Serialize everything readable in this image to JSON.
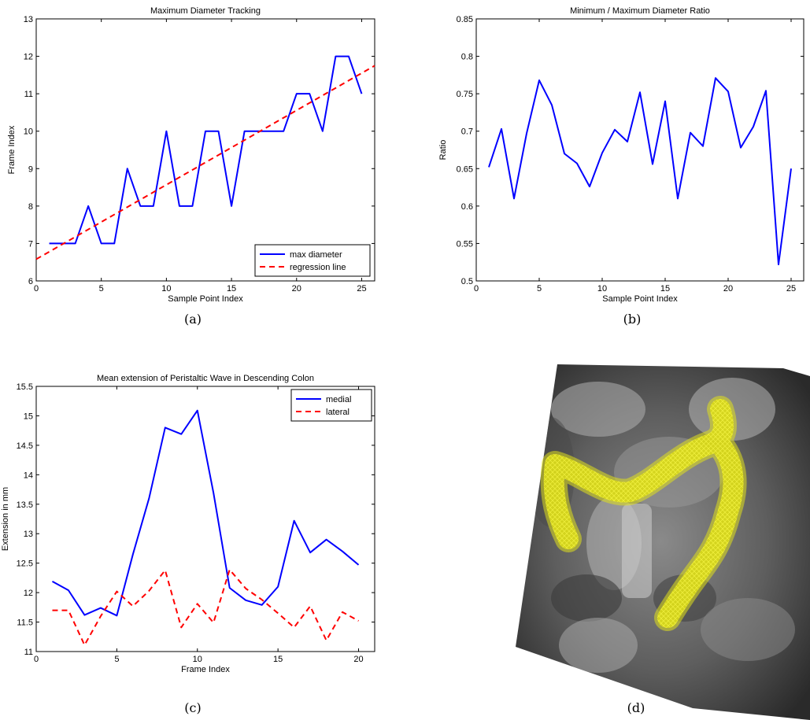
{
  "chart_data": [
    {
      "id": "a",
      "type": "line",
      "caption": "(a)",
      "title": "Maximum Diameter Tracking",
      "xlabel": "Sample Point Index",
      "ylabel": "Frame Index",
      "xlim": [
        0,
        26
      ],
      "ylim": [
        6,
        13
      ],
      "xticks": [
        0,
        5,
        10,
        15,
        20,
        25
      ],
      "yticks": [
        6,
        7,
        8,
        9,
        10,
        11,
        12,
        13
      ],
      "legend_position": "bottom-right",
      "series": [
        {
          "name": "max diameter",
          "color": "#0000ff",
          "dash": "solid",
          "x": [
            1,
            2,
            3,
            4,
            5,
            6,
            7,
            8,
            9,
            10,
            11,
            12,
            13,
            14,
            15,
            16,
            17,
            18,
            19,
            20,
            21,
            22,
            23,
            24,
            25
          ],
          "y": [
            7,
            7,
            7,
            8,
            7,
            7,
            9,
            8,
            8,
            10,
            8,
            8,
            10,
            10,
            8,
            10,
            10,
            10,
            10,
            11,
            11,
            10,
            12,
            12,
            11
          ]
        },
        {
          "name": "regression line",
          "color": "#ff0000",
          "dash": "dashed",
          "x": [
            0,
            26
          ],
          "y": [
            6.58,
            11.75
          ]
        }
      ]
    },
    {
      "id": "b",
      "type": "line",
      "caption": "(b)",
      "title": "Minimum / Maximum Diameter Ratio",
      "xlabel": "Sample Point Index",
      "ylabel": "Ratio",
      "xlim": [
        0,
        26
      ],
      "ylim": [
        0.5,
        0.85
      ],
      "xticks": [
        0,
        5,
        10,
        15,
        20,
        25
      ],
      "yticks": [
        0.5,
        0.55,
        0.6,
        0.65,
        0.7,
        0.75,
        0.8,
        0.85
      ],
      "series": [
        {
          "color": "#0000ff",
          "dash": "solid",
          "x": [
            1,
            2,
            3,
            4,
            5,
            6,
            7,
            8,
            9,
            10,
            11,
            12,
            13,
            14,
            15,
            16,
            17,
            18,
            19,
            20,
            21,
            22,
            23,
            24,
            25
          ],
          "y": [
            0.652,
            0.703,
            0.61,
            0.697,
            0.768,
            0.735,
            0.67,
            0.657,
            0.626,
            0.671,
            0.702,
            0.686,
            0.752,
            0.656,
            0.74,
            0.61,
            0.698,
            0.68,
            0.771,
            0.753,
            0.678,
            0.706,
            0.754,
            0.522,
            0.65
          ]
        }
      ]
    },
    {
      "id": "c",
      "type": "line",
      "caption": "(c)",
      "title": "Mean extension of Peristaltic Wave in Descending Colon",
      "xlabel": "Frame Index",
      "ylabel": "Extension in mm",
      "xlim": [
        0,
        21
      ],
      "ylim": [
        11,
        15.5
      ],
      "xticks": [
        0,
        5,
        10,
        15,
        20
      ],
      "yticks": [
        11,
        11.5,
        12,
        12.5,
        13,
        13.5,
        14,
        14.5,
        15,
        15.5
      ],
      "legend_position": "top-right",
      "series": [
        {
          "name": "medial",
          "color": "#0000ff",
          "dash": "solid",
          "x": [
            1,
            2,
            3,
            4,
            5,
            6,
            7,
            8,
            9,
            10,
            11,
            12,
            13,
            14,
            15,
            16,
            17,
            18,
            19,
            20
          ],
          "y": [
            12.19,
            12.04,
            11.62,
            11.74,
            11.61,
            12.65,
            13.6,
            14.8,
            14.69,
            15.09,
            13.69,
            12.08,
            11.87,
            11.79,
            12.1,
            13.22,
            12.68,
            12.9,
            12.7,
            12.47
          ]
        },
        {
          "name": "lateral",
          "color": "#ff0000",
          "dash": "dashed",
          "x": [
            1,
            2,
            3,
            4,
            5,
            6,
            7,
            8,
            9,
            10,
            11,
            12,
            13,
            14,
            15,
            16,
            17,
            18,
            19,
            20
          ],
          "y": [
            11.7,
            11.7,
            11.11,
            11.6,
            12.02,
            11.77,
            12.03,
            12.38,
            11.41,
            11.81,
            11.49,
            12.39,
            12.07,
            11.88,
            11.65,
            11.41,
            11.77,
            11.19,
            11.67,
            11.52
          ]
        }
      ]
    }
  ],
  "image_panel": {
    "caption": "(d)",
    "overlay_color": "#e5e51a"
  }
}
